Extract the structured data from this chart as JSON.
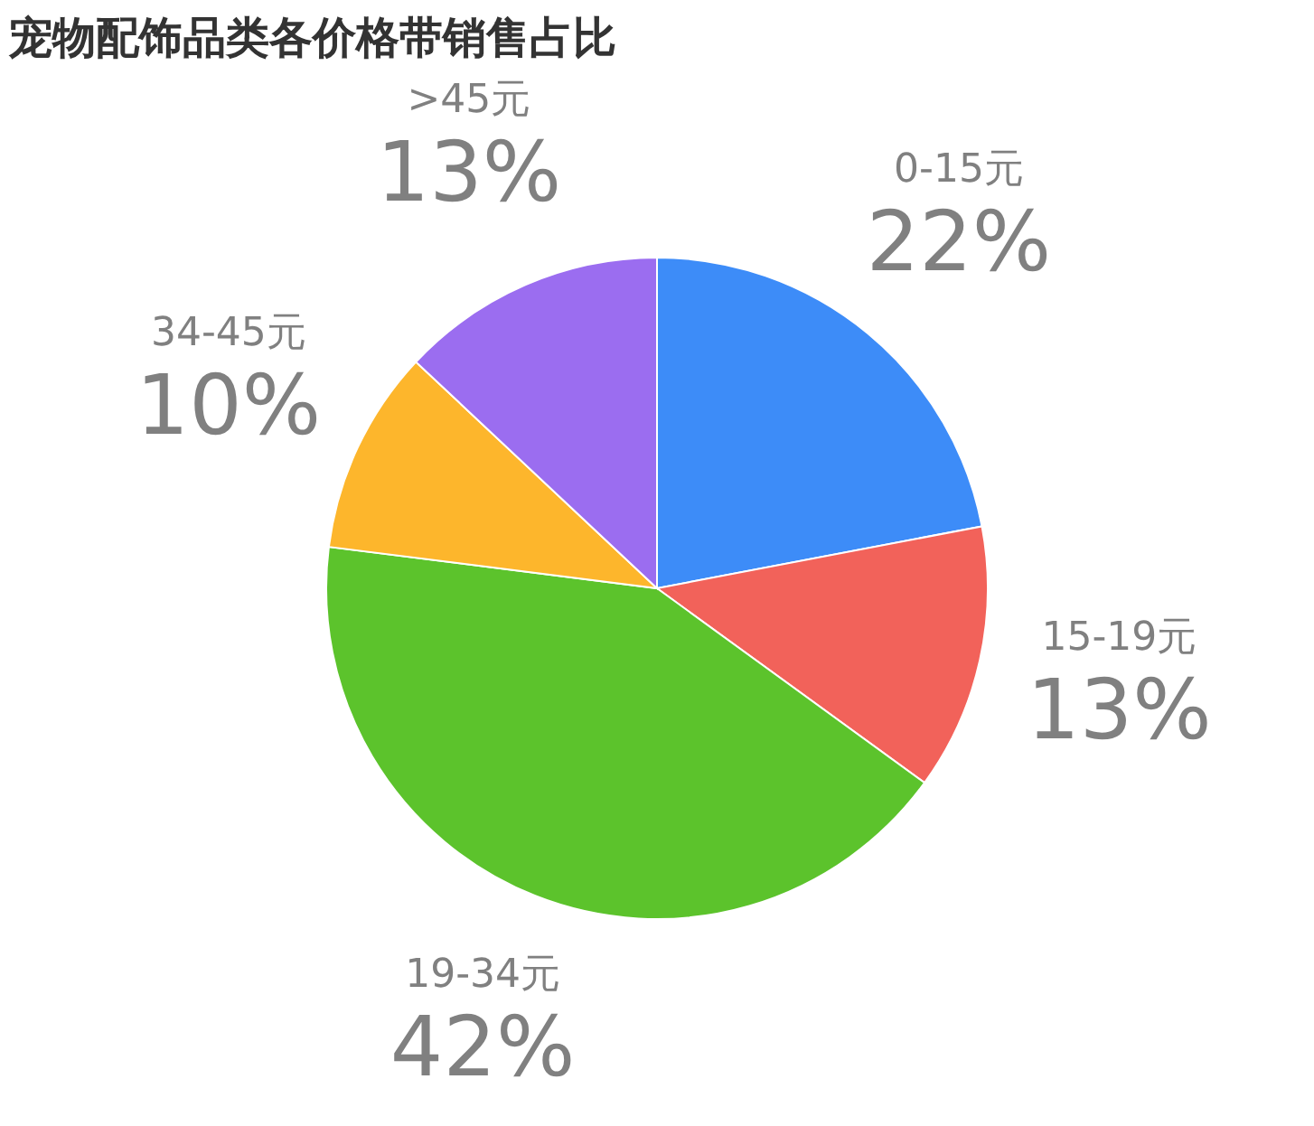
{
  "chart_data": {
    "type": "pie",
    "title": "宠物配饰品类各价格带销售占比",
    "categories": [
      "0-15元",
      "15-19元",
      "19-34元",
      "34-45元",
      ">45元"
    ],
    "values": [
      22,
      13,
      42,
      10,
      13
    ],
    "colors": [
      "#3d8cf8",
      "#f2625a",
      "#5cc32c",
      "#fdb62c",
      "#9b6df0"
    ],
    "value_labels": [
      "22%",
      "13%",
      "42%",
      "10%",
      "13%"
    ],
    "legend": false
  }
}
